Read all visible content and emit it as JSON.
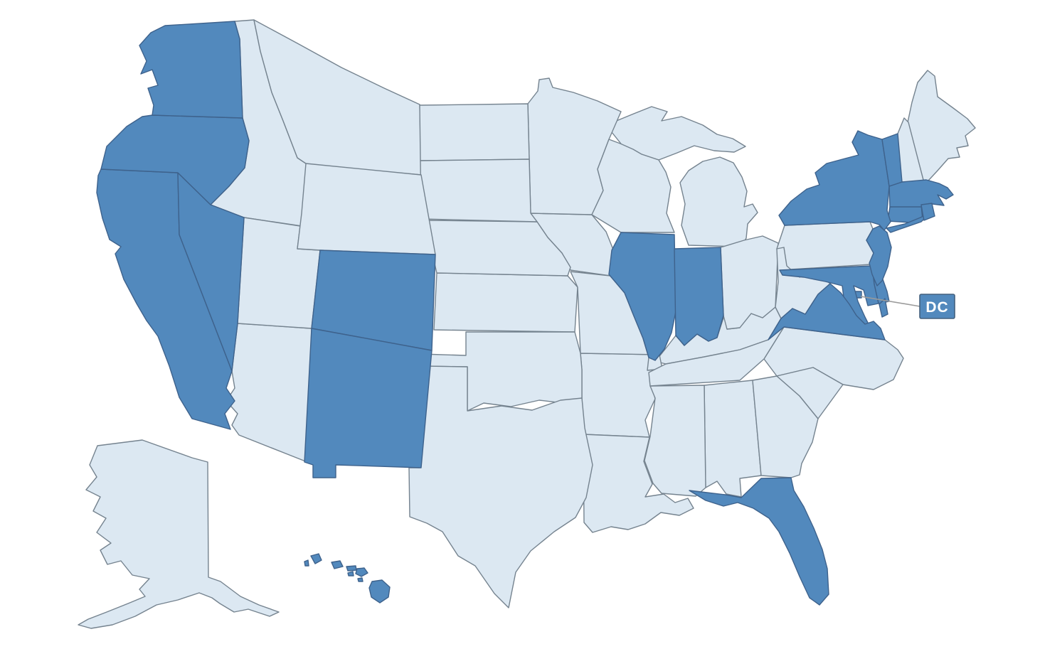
{
  "map": {
    "description": "US states map with highlighted states",
    "background": "#ffffff",
    "colors": {
      "highlighted": "#5289BD",
      "default": "#DCE8F2",
      "border_highlighted": "#3E628C",
      "border_default": "#75838F",
      "leader_line": "#9B9B9B"
    },
    "callout": {
      "label": "DC",
      "bg": "#5289BD",
      "text_color": "#FFFFFF",
      "border": "#44617E"
    },
    "highlighted_count": 20,
    "states": [
      {
        "abbr": "AL",
        "name": "Alabama",
        "highlighted": false
      },
      {
        "abbr": "AK",
        "name": "Alaska",
        "highlighted": false
      },
      {
        "abbr": "AZ",
        "name": "Arizona",
        "highlighted": false
      },
      {
        "abbr": "AR",
        "name": "Arkansas",
        "highlighted": false
      },
      {
        "abbr": "CA",
        "name": "California",
        "highlighted": true
      },
      {
        "abbr": "CO",
        "name": "Colorado",
        "highlighted": true
      },
      {
        "abbr": "CT",
        "name": "Connecticut",
        "highlighted": true
      },
      {
        "abbr": "DE",
        "name": "Delaware",
        "highlighted": true
      },
      {
        "abbr": "DC",
        "name": "District of Columbia",
        "highlighted": true
      },
      {
        "abbr": "FL",
        "name": "Florida",
        "highlighted": true
      },
      {
        "abbr": "GA",
        "name": "Georgia",
        "highlighted": false
      },
      {
        "abbr": "HI",
        "name": "Hawaii",
        "highlighted": true
      },
      {
        "abbr": "ID",
        "name": "Idaho",
        "highlighted": false
      },
      {
        "abbr": "IL",
        "name": "Illinois",
        "highlighted": true
      },
      {
        "abbr": "IN",
        "name": "Indiana",
        "highlighted": true
      },
      {
        "abbr": "IA",
        "name": "Iowa",
        "highlighted": false
      },
      {
        "abbr": "KS",
        "name": "Kansas",
        "highlighted": false
      },
      {
        "abbr": "KY",
        "name": "Kentucky",
        "highlighted": false
      },
      {
        "abbr": "LA",
        "name": "Louisiana",
        "highlighted": false
      },
      {
        "abbr": "ME",
        "name": "Maine",
        "highlighted": false
      },
      {
        "abbr": "MD",
        "name": "Maryland",
        "highlighted": true
      },
      {
        "abbr": "MA",
        "name": "Massachusetts",
        "highlighted": true
      },
      {
        "abbr": "MI",
        "name": "Michigan",
        "highlighted": false
      },
      {
        "abbr": "MN",
        "name": "Minnesota",
        "highlighted": false
      },
      {
        "abbr": "MS",
        "name": "Mississippi",
        "highlighted": false
      },
      {
        "abbr": "MO",
        "name": "Missouri",
        "highlighted": false
      },
      {
        "abbr": "MT",
        "name": "Montana",
        "highlighted": false
      },
      {
        "abbr": "NE",
        "name": "Nebraska",
        "highlighted": false
      },
      {
        "abbr": "NV",
        "name": "Nevada",
        "highlighted": true
      },
      {
        "abbr": "NH",
        "name": "New Hampshire",
        "highlighted": false
      },
      {
        "abbr": "NJ",
        "name": "New Jersey",
        "highlighted": true
      },
      {
        "abbr": "NM",
        "name": "New Mexico",
        "highlighted": true
      },
      {
        "abbr": "NY",
        "name": "New York",
        "highlighted": true
      },
      {
        "abbr": "NC",
        "name": "North Carolina",
        "highlighted": false
      },
      {
        "abbr": "ND",
        "name": "North Dakota",
        "highlighted": false
      },
      {
        "abbr": "OH",
        "name": "Ohio",
        "highlighted": false
      },
      {
        "abbr": "OK",
        "name": "Oklahoma",
        "highlighted": false
      },
      {
        "abbr": "OR",
        "name": "Oregon",
        "highlighted": true
      },
      {
        "abbr": "PA",
        "name": "Pennsylvania",
        "highlighted": false
      },
      {
        "abbr": "RI",
        "name": "Rhode Island",
        "highlighted": true
      },
      {
        "abbr": "SC",
        "name": "South Carolina",
        "highlighted": false
      },
      {
        "abbr": "SD",
        "name": "South Dakota",
        "highlighted": false
      },
      {
        "abbr": "TN",
        "name": "Tennessee",
        "highlighted": false
      },
      {
        "abbr": "TX",
        "name": "Texas",
        "highlighted": false
      },
      {
        "abbr": "UT",
        "name": "Utah",
        "highlighted": false
      },
      {
        "abbr": "VT",
        "name": "Vermont",
        "highlighted": true
      },
      {
        "abbr": "VA",
        "name": "Virginia",
        "highlighted": true
      },
      {
        "abbr": "WA",
        "name": "Washington",
        "highlighted": true
      },
      {
        "abbr": "WV",
        "name": "West Virginia",
        "highlighted": false
      },
      {
        "abbr": "WI",
        "name": "Wisconsin",
        "highlighted": false
      },
      {
        "abbr": "WY",
        "name": "Wyoming",
        "highlighted": false
      }
    ]
  }
}
